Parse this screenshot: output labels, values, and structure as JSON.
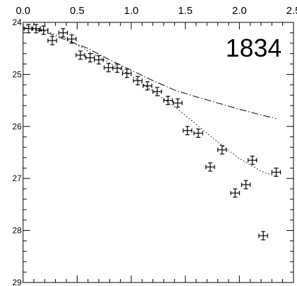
{
  "chart_data": {
    "type": "scatter",
    "title": "",
    "xlabel": "",
    "ylabel": "",
    "xlim": [
      0,
      2.5
    ],
    "ylim": [
      29,
      24
    ],
    "y_axis_inverted": true,
    "grid": false,
    "legend": "none",
    "x_tick_labels": [
      "0.0",
      "0.5",
      "1.0",
      "1.5",
      "2.0",
      "2.5"
    ],
    "y_tick_labels": [
      "24",
      "25",
      "26",
      "27",
      "28",
      "29"
    ],
    "annotation": "1834",
    "points": [
      {
        "x": 0.05,
        "y": 24.12,
        "xerr": 0.04,
        "yerr": 0.08
      },
      {
        "x": 0.12,
        "y": 24.12,
        "xerr": 0.04,
        "yerr": 0.08
      },
      {
        "x": 0.19,
        "y": 24.15,
        "xerr": 0.04,
        "yerr": 0.08
      },
      {
        "x": 0.27,
        "y": 24.35,
        "xerr": 0.04,
        "yerr": 0.08
      },
      {
        "x": 0.37,
        "y": 24.2,
        "xerr": 0.04,
        "yerr": 0.08
      },
      {
        "x": 0.45,
        "y": 24.32,
        "xerr": 0.04,
        "yerr": 0.08
      },
      {
        "x": 0.53,
        "y": 24.63,
        "xerr": 0.04,
        "yerr": 0.08
      },
      {
        "x": 0.62,
        "y": 24.68,
        "xerr": 0.04,
        "yerr": 0.08
      },
      {
        "x": 0.7,
        "y": 24.72,
        "xerr": 0.04,
        "yerr": 0.08
      },
      {
        "x": 0.79,
        "y": 24.87,
        "xerr": 0.04,
        "yerr": 0.08
      },
      {
        "x": 0.87,
        "y": 24.88,
        "xerr": 0.04,
        "yerr": 0.08
      },
      {
        "x": 0.96,
        "y": 24.98,
        "xerr": 0.04,
        "yerr": 0.08
      },
      {
        "x": 1.06,
        "y": 25.12,
        "xerr": 0.04,
        "yerr": 0.08
      },
      {
        "x": 1.15,
        "y": 25.22,
        "xerr": 0.04,
        "yerr": 0.08
      },
      {
        "x": 1.24,
        "y": 25.33,
        "xerr": 0.04,
        "yerr": 0.08
      },
      {
        "x": 1.34,
        "y": 25.5,
        "xerr": 0.04,
        "yerr": 0.08
      },
      {
        "x": 1.43,
        "y": 25.55,
        "xerr": 0.04,
        "yerr": 0.08
      },
      {
        "x": 1.52,
        "y": 26.08,
        "xerr": 0.04,
        "yerr": 0.08
      },
      {
        "x": 1.62,
        "y": 26.13,
        "xerr": 0.04,
        "yerr": 0.08
      },
      {
        "x": 1.73,
        "y": 26.78,
        "xerr": 0.04,
        "yerr": 0.08
      },
      {
        "x": 1.84,
        "y": 26.45,
        "xerr": 0.04,
        "yerr": 0.08
      },
      {
        "x": 1.96,
        "y": 27.28,
        "xerr": 0.04,
        "yerr": 0.08
      },
      {
        "x": 2.06,
        "y": 27.12,
        "xerr": 0.04,
        "yerr": 0.08
      },
      {
        "x": 2.12,
        "y": 26.65,
        "xerr": 0.04,
        "yerr": 0.08
      },
      {
        "x": 2.22,
        "y": 28.1,
        "xerr": 0.04,
        "yerr": 0.08
      },
      {
        "x": 2.34,
        "y": 26.88,
        "xerr": 0.04,
        "yerr": 0.08
      }
    ],
    "model_curves": [
      {
        "style": "dash-dot",
        "x": [
          0.0,
          0.2,
          0.4,
          0.6,
          0.8,
          1.0,
          1.2,
          1.4,
          1.6,
          1.8,
          2.0,
          2.2,
          2.34
        ],
        "y": [
          24.1,
          24.18,
          24.34,
          24.5,
          24.72,
          24.92,
          25.12,
          25.3,
          25.43,
          25.55,
          25.67,
          25.78,
          25.85
        ]
      },
      {
        "style": "dotted",
        "x": [
          0.0,
          0.2,
          0.4,
          0.6,
          0.8,
          1.0,
          1.2,
          1.4,
          1.6,
          1.8,
          2.0,
          2.2,
          2.34
        ],
        "y": [
          24.05,
          24.15,
          24.32,
          24.55,
          24.78,
          25.02,
          25.32,
          25.62,
          25.96,
          26.3,
          26.62,
          26.86,
          26.96
        ]
      }
    ]
  }
}
